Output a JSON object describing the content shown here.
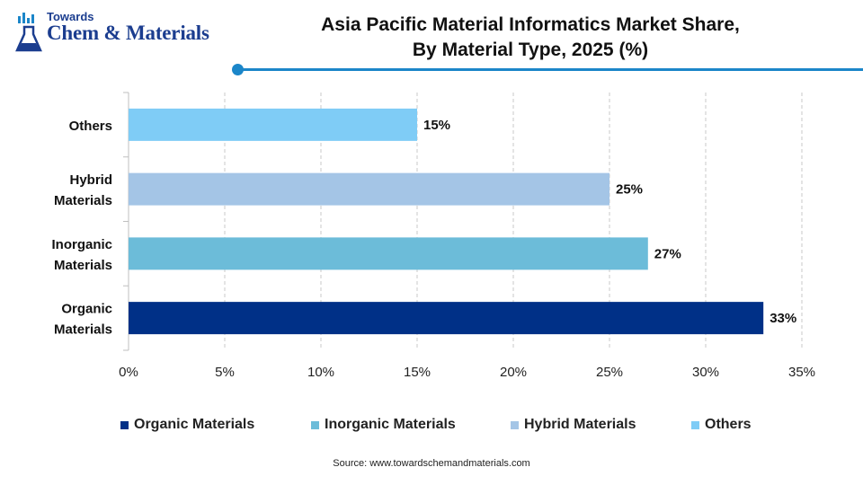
{
  "logo": {
    "line1": "Towards",
    "line2": "Chem & Materials"
  },
  "title_line1": "Asia Pacific Material Informatics Market Share,",
  "title_line2": "By Material Type, 2025 (%)",
  "source": "Source:  www.towardschemandmaterials.com",
  "colors": {
    "accent": "#1b86c9",
    "organic": "#003087",
    "inorganic": "#6cbcd9",
    "hybrid": "#a4c5e6",
    "others": "#7fccf6"
  },
  "chart_data": {
    "type": "bar",
    "orientation": "horizontal",
    "title": "Asia Pacific Material Informatics Market Share, By Material Type, 2025 (%)",
    "categories": [
      [
        "Organic",
        "Materials"
      ],
      [
        "Inorganic",
        "Materials"
      ],
      [
        "Hybrid",
        "Materials"
      ],
      [
        "Others"
      ]
    ],
    "values": [
      33,
      27,
      25,
      15
    ],
    "data_labels": [
      "33%",
      "27%",
      "25%",
      "15%"
    ],
    "bar_colors": [
      "#003087",
      "#6cbcd9",
      "#a4c5e6",
      "#7fccf6"
    ],
    "xlim": [
      0,
      35
    ],
    "xticks": [
      0,
      5,
      10,
      15,
      20,
      25,
      30,
      35
    ],
    "xtick_labels": [
      "0%",
      "5%",
      "10%",
      "15%",
      "20%",
      "25%",
      "30%",
      "35%"
    ],
    "grid": "vertical dashed",
    "legend_position": "bottom",
    "legend": [
      {
        "label": "Organic Materials",
        "color": "#003087"
      },
      {
        "label": "Inorganic Materials",
        "color": "#6cbcd9"
      },
      {
        "label": "Hybrid Materials",
        "color": "#a4c5e6"
      },
      {
        "label": "Others",
        "color": "#7fccf6"
      }
    ]
  }
}
